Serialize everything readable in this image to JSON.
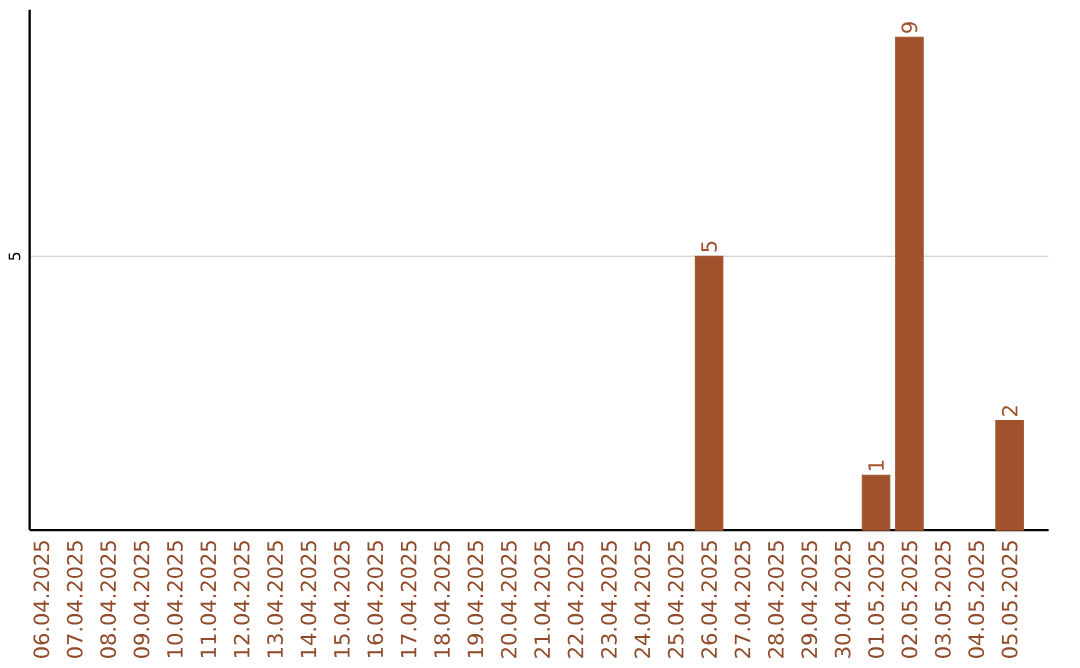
{
  "chart_data": {
    "type": "bar",
    "categories": [
      "06.04.2025",
      "07.04.2025",
      "08.04.2025",
      "09.04.2025",
      "10.04.2025",
      "11.04.2025",
      "12.04.2025",
      "13.04.2025",
      "14.04.2025",
      "15.04.2025",
      "16.04.2025",
      "17.04.2025",
      "18.04.2025",
      "19.04.2025",
      "20.04.2025",
      "21.04.2025",
      "22.04.2025",
      "23.04.2025",
      "24.04.2025",
      "25.04.2025",
      "26.04.2025",
      "27.04.2025",
      "28.04.2025",
      "29.04.2025",
      "30.04.2025",
      "01.05.2025",
      "02.05.2025",
      "03.05.2025",
      "04.05.2025",
      "05.05.2025"
    ],
    "values": [
      null,
      null,
      null,
      null,
      null,
      null,
      null,
      null,
      null,
      null,
      null,
      null,
      null,
      null,
      null,
      null,
      null,
      null,
      null,
      null,
      5,
      null,
      null,
      null,
      null,
      1,
      9,
      null,
      null,
      2
    ],
    "data_labels": true,
    "color": "#a0522d",
    "ylim": [
      0,
      9.5
    ],
    "yticks": [
      5
    ],
    "grid": "y"
  }
}
